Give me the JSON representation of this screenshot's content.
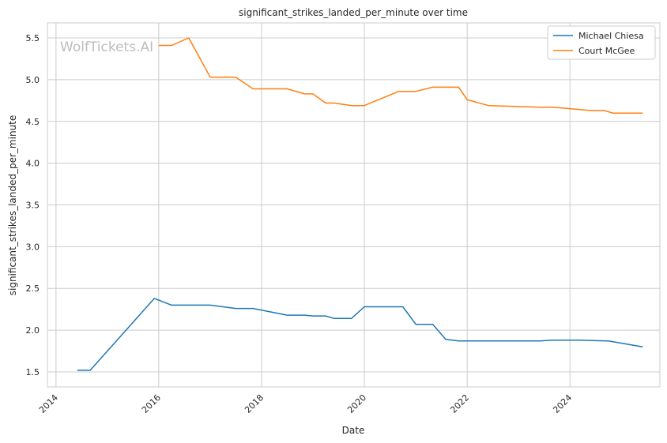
{
  "chart_data": {
    "type": "line",
    "title": "significant_strikes_landed_per_minute over time",
    "xlabel": "Date",
    "ylabel": "significant_strikes_landed_per_minute",
    "watermark": "WolfTickets.AI",
    "xlim": [
      "2013-11-01",
      "2025-10-01"
    ],
    "ylim": [
      1.32,
      5.68
    ],
    "x_ticks": [
      "2014-01-01",
      "2016-01-01",
      "2018-01-01",
      "2020-01-01",
      "2022-01-01",
      "2024-01-01"
    ],
    "x_tick_labels": [
      "2014",
      "2016",
      "2018",
      "2020",
      "2022",
      "2024"
    ],
    "y_ticks": [
      1.5,
      2.0,
      2.5,
      3.0,
      3.5,
      4.0,
      4.5,
      5.0,
      5.5
    ],
    "y_tick_labels": [
      "1.5",
      "2.0",
      "2.5",
      "3.0",
      "3.5",
      "4.0",
      "4.5",
      "5.0",
      "5.5"
    ],
    "grid": true,
    "legend_position": "top-right",
    "series": [
      {
        "name": "Michael Chiesa",
        "color": "#1f77b4",
        "points": [
          [
            "2014-06-01",
            1.52
          ],
          [
            "2014-09-01",
            1.52
          ],
          [
            "2015-12-01",
            2.38
          ],
          [
            "2016-04-01",
            2.3
          ],
          [
            "2017-01-01",
            2.3
          ],
          [
            "2017-07-01",
            2.26
          ],
          [
            "2017-11-01",
            2.26
          ],
          [
            "2018-07-01",
            2.18
          ],
          [
            "2018-11-01",
            2.18
          ],
          [
            "2019-01-01",
            2.17
          ],
          [
            "2019-04-01",
            2.17
          ],
          [
            "2019-06-01",
            2.14
          ],
          [
            "2019-10-01",
            2.14
          ],
          [
            "2020-01-01",
            2.28
          ],
          [
            "2020-10-01",
            2.28
          ],
          [
            "2021-01-01",
            2.07
          ],
          [
            "2021-05-01",
            2.07
          ],
          [
            "2021-08-01",
            1.89
          ],
          [
            "2021-11-01",
            1.87
          ],
          [
            "2023-06-01",
            1.87
          ],
          [
            "2023-09-01",
            1.88
          ],
          [
            "2024-03-01",
            1.88
          ],
          [
            "2024-10-01",
            1.87
          ],
          [
            "2025-06-01",
            1.8
          ]
        ]
      },
      {
        "name": "Court McGee",
        "color": "#ff7f0e",
        "points": [
          [
            "2016-01-01",
            5.41
          ],
          [
            "2016-04-01",
            5.41
          ],
          [
            "2016-08-01",
            5.5
          ],
          [
            "2017-01-01",
            5.03
          ],
          [
            "2017-07-01",
            5.03
          ],
          [
            "2017-11-01",
            4.89
          ],
          [
            "2018-07-01",
            4.89
          ],
          [
            "2018-11-01",
            4.83
          ],
          [
            "2019-01-01",
            4.83
          ],
          [
            "2019-04-01",
            4.72
          ],
          [
            "2019-06-01",
            4.72
          ],
          [
            "2019-10-01",
            4.69
          ],
          [
            "2020-01-01",
            4.69
          ],
          [
            "2020-09-01",
            4.86
          ],
          [
            "2021-01-01",
            4.86
          ],
          [
            "2021-05-01",
            4.91
          ],
          [
            "2021-11-01",
            4.91
          ],
          [
            "2022-01-01",
            4.76
          ],
          [
            "2022-06-01",
            4.69
          ],
          [
            "2023-06-01",
            4.67
          ],
          [
            "2023-09-01",
            4.67
          ],
          [
            "2024-06-01",
            4.63
          ],
          [
            "2024-09-01",
            4.63
          ],
          [
            "2024-11-01",
            4.6
          ],
          [
            "2025-06-01",
            4.6
          ]
        ]
      }
    ]
  }
}
